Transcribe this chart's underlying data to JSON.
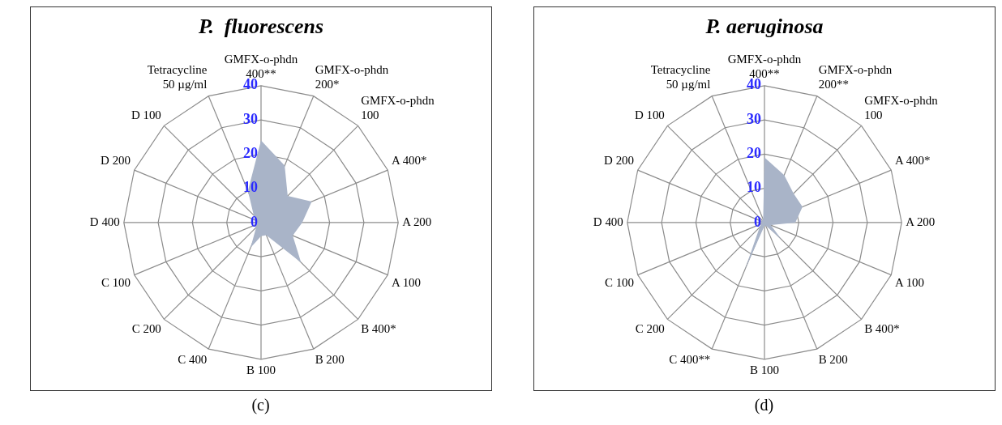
{
  "chart_data": [
    {
      "type": "radar",
      "title": "P.  fluorescens",
      "categories": [
        "GMFX-o-phdn 400**",
        "GMFX-o-phdn 200*",
        "GMFX-o-phdn 100",
        "A 400*",
        "A 200",
        "A 100",
        "B 400*",
        "B 200",
        "B 100",
        "C 400",
        "C 200",
        "C 100",
        "D 400",
        "D 200",
        "D 100",
        "Tetracycline 50 µg/ml"
      ],
      "series": [
        {
          "color": "#a9b4c8",
          "values": [
            24,
            18,
            11,
            16,
            12,
            10,
            16.5,
            4,
            4,
            8,
            2,
            2,
            1,
            2,
            3,
            10
          ]
        }
      ],
      "ylim": [
        0,
        40
      ],
      "yticks": [
        0,
        10,
        20,
        30,
        40
      ],
      "grid": true,
      "legend": false,
      "marker": "none",
      "annotations": [
        "(c)"
      ]
    },
    {
      "type": "radar",
      "title": "P. aeruginosa",
      "categories": [
        "GMFX-o-phdn 400**",
        "GMFX-o-phdn 200**",
        "GMFX-o-phdn 100",
        "A 400*",
        "A 200",
        "A 100",
        "B 400*",
        "B 200",
        "B 100",
        "C 400**",
        "C 200",
        "C 100",
        "D 400",
        "D 200",
        "D 100",
        "Tetracycline 50 µg/ml"
      ],
      "series": [
        {
          "color": "#a9b4c8",
          "values": [
            19,
            15,
            12,
            12,
            9,
            2,
            7,
            1,
            1,
            15,
            2,
            1,
            1,
            1,
            1,
            1
          ]
        }
      ],
      "ylim": [
        0,
        40
      ],
      "yticks": [
        0,
        10,
        20,
        30,
        40
      ],
      "grid": true,
      "legend": false,
      "marker": "none",
      "annotations": [
        "(d)"
      ]
    }
  ]
}
